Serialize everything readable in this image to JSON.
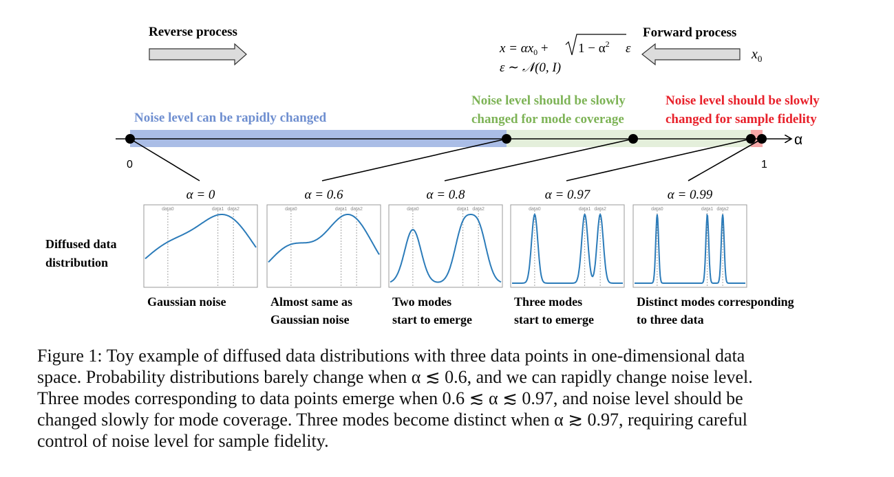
{
  "reverse_label": "Reverse process",
  "forward_label": "Forward process",
  "equation_line1_left": "x = αx",
  "equation_sub0": "0",
  "equation_line1_mid": " + ",
  "equation_sqrt_body": "1 − α",
  "equation_sup2": "2",
  "equation_eps": "ε",
  "equation_line2": "ε ∼ 𝒩(0, I)",
  "x0_label": "x",
  "x0_sub": "0",
  "axis_symbol": "α",
  "axis_start": "0",
  "axis_end": "1",
  "region_rapid": "Noise level can be rapidly changed",
  "region_mode_line1": "Noise level should be slowly",
  "region_mode_line2": "changed for mode coverage",
  "region_fidelity_line1": "Noise level should be slowly",
  "region_fidelity_line2": "changed for sample fidelity",
  "row_label_line1": "Diffused data",
  "row_label_line2": "distribution",
  "colors": {
    "rapid": "#6f8fd0",
    "mode": "#7db356",
    "fidelity": "#e8202a",
    "rapid_band": "#aabde6",
    "mode_band": "#e4efdb",
    "fidelity_band": "#f6a8a8",
    "curve": "#2b7bb9"
  },
  "panels": [
    {
      "alpha_label": "α = 0",
      "caption_line1": "Gaussian noise",
      "caption_line2": "",
      "ticks": [
        "data0",
        "data1",
        "data2"
      ]
    },
    {
      "alpha_label": "α = 0.6",
      "caption_line1": "Almost same as",
      "caption_line2": "Gaussian noise",
      "ticks": [
        "data0",
        "data1",
        "data2"
      ]
    },
    {
      "alpha_label": "α = 0.8",
      "caption_line1": "Two modes",
      "caption_line2": "start to emerge",
      "ticks": [
        "data0",
        "data1",
        "data2"
      ]
    },
    {
      "alpha_label": "α = 0.97",
      "caption_line1": "Three modes",
      "caption_line2": "start to emerge",
      "ticks": [
        "data0",
        "data1",
        "data2"
      ]
    },
    {
      "alpha_label": "α = 0.99",
      "caption_line1": "Distinct modes corresponding",
      "caption_line2": "to three data",
      "ticks": [
        "data0",
        "data1",
        "data2"
      ]
    }
  ],
  "caption": {
    "line1": "Figure 1:  Toy example of diffused data distributions with three data points in one-dimensional data",
    "line2": "space. Probability distributions barely change when α ≲ 0.6, and we can rapidly change noise level.",
    "line3": "Three modes corresponding to data points emerge when 0.6 ≲ α ≲ 0.97, and noise level should be",
    "line4": "changed slowly for mode coverage. Three modes become distinct when α ≳ 0.97, requiring careful",
    "line5": "control of noise level for sample fidelity."
  }
}
